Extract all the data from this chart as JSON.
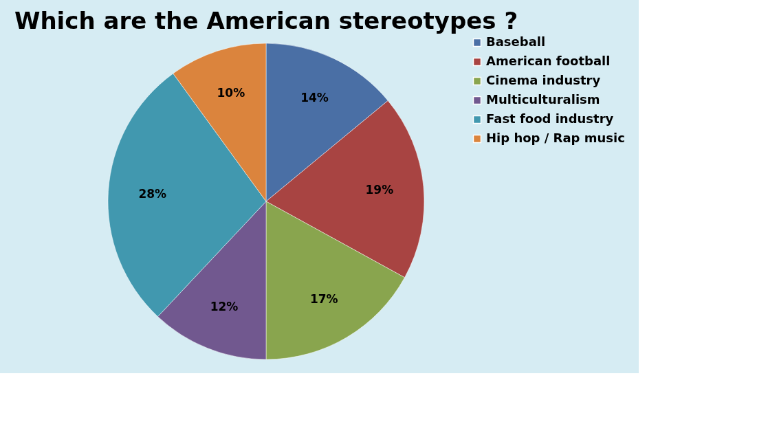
{
  "chart_data": {
    "type": "pie",
    "title": "Which are the American stereotypes ?",
    "categories": [
      "Baseball",
      "American football",
      "Cinema industry",
      "Multiculturalism",
      "Fast food industry",
      "Hip hop / Rap music"
    ],
    "values": [
      14,
      19,
      17,
      12,
      28,
      10
    ],
    "value_labels": [
      "14%",
      "19%",
      "17%",
      "12%",
      "28%",
      "10%"
    ],
    "colors": [
      "#4a6fa5",
      "#a84442",
      "#89a54e",
      "#71588f",
      "#4198af",
      "#db843d"
    ],
    "legend": "right"
  }
}
